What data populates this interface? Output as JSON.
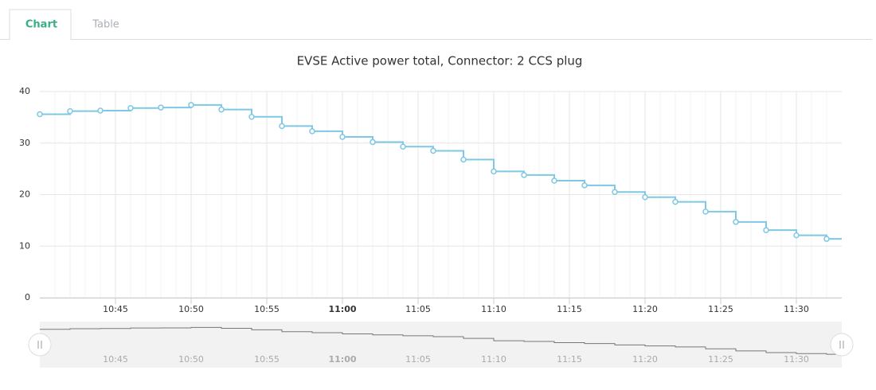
{
  "tabs": [
    "Chart",
    "Table"
  ],
  "chart_data": {
    "type": "line",
    "step": true,
    "title": "EVSE Active power total, Connector: 2 CCS plug",
    "x": [
      "10:40",
      "10:42",
      "10:44",
      "10:46",
      "10:48",
      "10:50",
      "10:52",
      "10:54",
      "10:56",
      "10:58",
      "11:00",
      "11:02",
      "11:04",
      "11:06",
      "11:08",
      "11:10",
      "11:12",
      "11:14",
      "11:16",
      "11:18",
      "11:20",
      "11:22",
      "11:24",
      "11:26",
      "11:28",
      "11:30",
      "11:32"
    ],
    "series": [
      {
        "name": "EVSE Active power total",
        "color": "#7ec8e3",
        "values": [
          35.6,
          36.2,
          36.3,
          36.8,
          36.9,
          37.4,
          36.5,
          35.1,
          33.3,
          32.3,
          31.2,
          30.2,
          29.3,
          28.5,
          26.8,
          24.5,
          23.8,
          22.7,
          21.8,
          20.5,
          19.5,
          18.6,
          16.7,
          14.7,
          13.1,
          12.1,
          11.4
        ]
      }
    ],
    "xlim": [
      "10:40",
      "11:33"
    ],
    "xticks": [
      "10:45",
      "10:50",
      "10:55",
      "11:00",
      "11:05",
      "11:10",
      "11:15",
      "11:20",
      "11:25",
      "11:30"
    ],
    "ylim": [
      0,
      40
    ],
    "yticks": [
      0,
      10,
      20,
      30,
      40
    ],
    "grid": true
  }
}
